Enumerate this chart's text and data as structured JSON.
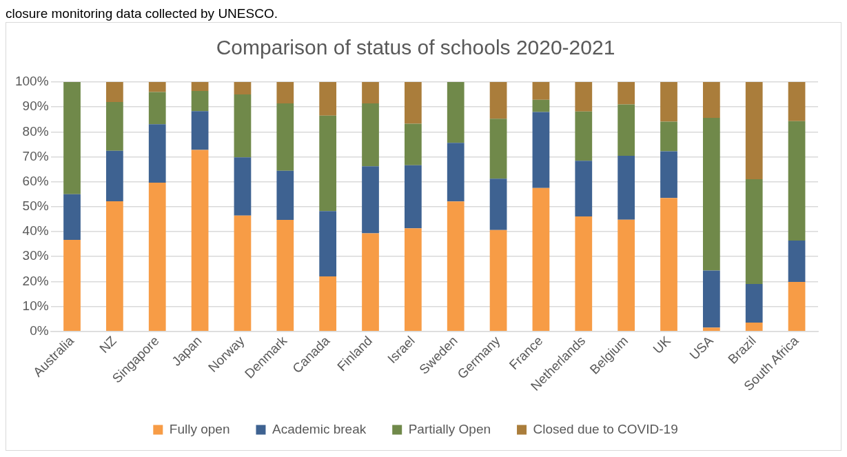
{
  "chart_data": {
    "type": "bar",
    "title": "Comparison of status of schools 2020-2021",
    "annotations": [
      "closure monitoring data collected by UNESCO."
    ],
    "categories": [
      "Australia",
      "NZ",
      "Singapore",
      "Japan",
      "Norway",
      "Denmark",
      "Canada",
      "Finland",
      "Israel",
      "Sweden",
      "Germany",
      "France",
      "Netherlands",
      "Belgium",
      "UK",
      "USA",
      "Brazil",
      "South Africa"
    ],
    "stacked": true,
    "ylim": [
      0,
      100
    ],
    "yticks": [
      {
        "value": 0,
        "label": "0%"
      },
      {
        "value": 10,
        "label": "10%"
      },
      {
        "value": 20,
        "label": "20%"
      },
      {
        "value": 30,
        "label": "30%"
      },
      {
        "value": 40,
        "label": "40%"
      },
      {
        "value": 50,
        "label": "50%"
      },
      {
        "value": 60,
        "label": "60%"
      },
      {
        "value": 70,
        "label": "70%"
      },
      {
        "value": 80,
        "label": "80%"
      },
      {
        "value": 90,
        "label": "90%"
      },
      {
        "value": 100,
        "label": "100%"
      }
    ],
    "grid": "y",
    "legend": "bottom",
    "series": [
      {
        "name": "Fully open",
        "color": "#f79c46",
        "values": [
          36.7,
          52.2,
          59.6,
          72.8,
          46.4,
          44.7,
          22.0,
          39.3,
          41.3,
          52.1,
          40.6,
          57.5,
          46.1,
          44.8,
          53.5,
          1.5,
          3.5,
          19.8
        ]
      },
      {
        "name": "Academic break",
        "color": "#3e6291",
        "values": [
          18.3,
          20.2,
          23.5,
          15.5,
          23.4,
          19.7,
          26.2,
          26.9,
          25.3,
          23.5,
          20.6,
          30.5,
          22.3,
          25.6,
          18.7,
          22.9,
          15.5,
          16.6
        ]
      },
      {
        "name": "Partially Open",
        "color": "#70894a",
        "values": [
          45.0,
          19.6,
          12.9,
          8.1,
          25.2,
          27.0,
          38.3,
          25.2,
          16.7,
          24.4,
          24.1,
          4.9,
          19.8,
          20.6,
          11.9,
          61.2,
          42.0,
          47.9
        ]
      },
      {
        "name": "Closed due to COVID-19",
        "color": "#aa7d3b",
        "values": [
          0,
          8.0,
          4.0,
          3.6,
          5.0,
          8.6,
          13.5,
          8.6,
          16.7,
          0,
          14.7,
          7.1,
          11.8,
          9.0,
          15.9,
          14.4,
          39.0,
          15.7
        ]
      }
    ]
  }
}
